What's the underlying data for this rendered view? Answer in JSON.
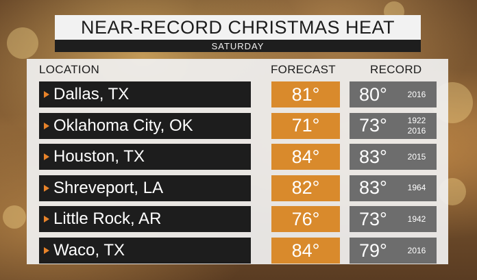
{
  "header": {
    "title": "NEAR-RECORD CHRISTMAS HEAT",
    "subtitle": "SATURDAY"
  },
  "columns": {
    "location": "LOCATION",
    "forecast": "FORECAST",
    "record": "RECORD"
  },
  "rows": [
    {
      "location": "Dallas, TX",
      "forecast": "81°",
      "record": "80°",
      "years": [
        "2016"
      ]
    },
    {
      "location": "Oklahoma City, OK",
      "forecast": "71°",
      "record": "73°",
      "years": [
        "1922",
        "2016"
      ]
    },
    {
      "location": "Houston, TX",
      "forecast": "84°",
      "record": "83°",
      "years": [
        "2015"
      ]
    },
    {
      "location": "Shreveport, LA",
      "forecast": "82°",
      "record": "83°",
      "years": [
        "1964"
      ]
    },
    {
      "location": "Little Rock, AR",
      "forecast": "76°",
      "record": "73°",
      "years": [
        "1942"
      ]
    },
    {
      "location": "Waco, TX",
      "forecast": "84°",
      "record": "79°",
      "years": [
        "2016"
      ]
    }
  ],
  "colors": {
    "forecast_cell": "#d98a2c",
    "record_cell": "#6d6d6d",
    "location_cell": "#1d1d1d",
    "arrow": "#e8832a"
  }
}
